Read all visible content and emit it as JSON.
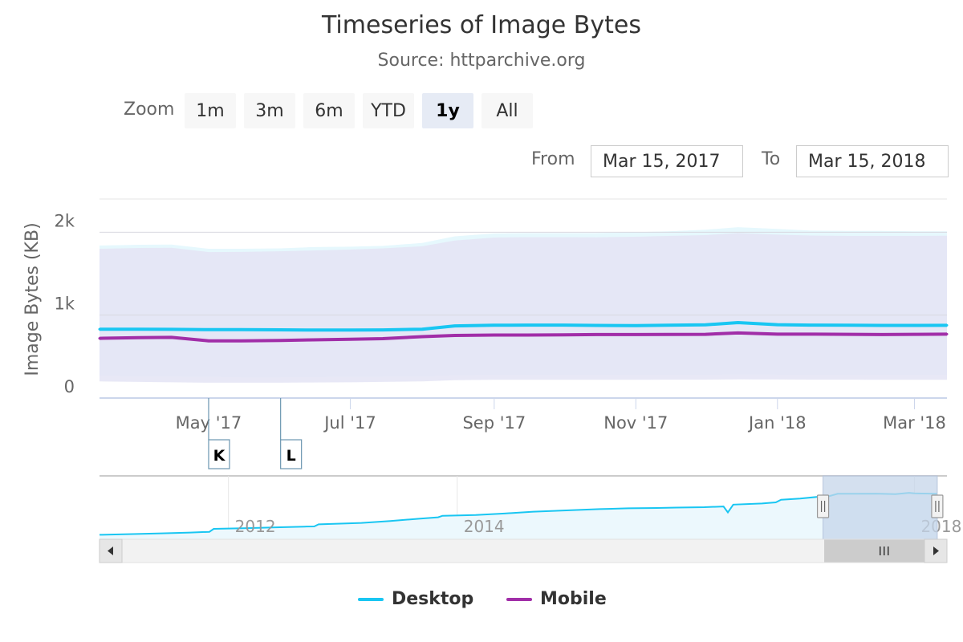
{
  "chart_data": {
    "type": "area",
    "title": "Timeseries of Image Bytes",
    "subtitle": "Source: httparchive.org",
    "ylabel": "Image Bytes (KB)",
    "xlabel": "",
    "ylim": [
      0,
      2400
    ],
    "yticks": [
      {
        "value": 0,
        "label": "0"
      },
      {
        "value": 1000,
        "label": "1k"
      },
      {
        "value": 2000,
        "label": "2k"
      }
    ],
    "xlim": [
      "2017-03-15",
      "2018-03-15"
    ],
    "xticks": [
      {
        "date": "2017-05-01",
        "label": "May '17"
      },
      {
        "date": "2017-07-01",
        "label": "Jul '17"
      },
      {
        "date": "2017-09-01",
        "label": "Sep '17"
      },
      {
        "date": "2017-11-01",
        "label": "Nov '17"
      },
      {
        "date": "2018-01-01",
        "label": "Jan '18"
      },
      {
        "date": "2018-03-01",
        "label": "Mar '18"
      }
    ],
    "grid": true,
    "legend_position": "bottom-center",
    "series": [
      {
        "name": "Desktop",
        "color": "#19c6f2",
        "x": [
          "2017-03-15",
          "2017-04-01",
          "2017-04-15",
          "2017-05-01",
          "2017-05-15",
          "2017-06-01",
          "2017-06-15",
          "2017-07-01",
          "2017-07-15",
          "2017-08-01",
          "2017-08-15",
          "2017-09-01",
          "2017-09-15",
          "2017-10-01",
          "2017-10-15",
          "2017-11-01",
          "2017-11-15",
          "2017-12-01",
          "2017-12-15",
          "2018-01-01",
          "2018-01-15",
          "2018-02-01",
          "2018-02-15",
          "2018-03-01",
          "2018-03-15"
        ],
        "values": [
          830,
          830,
          828,
          825,
          825,
          823,
          820,
          820,
          822,
          830,
          870,
          878,
          880,
          880,
          876,
          874,
          878,
          883,
          910,
          885,
          880,
          878,
          876,
          876,
          877
        ],
        "band": {
          "low": [
            270,
            265,
            260,
            255,
            250,
            250,
            252,
            255,
            258,
            262,
            275,
            280,
            280,
            280,
            280,
            280,
            280,
            280,
            285,
            282,
            280,
            280,
            278,
            278,
            278
          ],
          "high": [
            1840,
            1848,
            1850,
            1800,
            1800,
            1805,
            1820,
            1825,
            1835,
            1870,
            1950,
            1985,
            1990,
            1990,
            1990,
            2000,
            2010,
            2030,
            2060,
            2040,
            2020,
            2015,
            2015,
            2010,
            2010
          ]
        }
      },
      {
        "name": "Mobile",
        "color": "#a12ea8",
        "x": [
          "2017-03-15",
          "2017-04-01",
          "2017-04-15",
          "2017-05-01",
          "2017-05-15",
          "2017-06-01",
          "2017-06-15",
          "2017-07-01",
          "2017-07-15",
          "2017-08-01",
          "2017-08-15",
          "2017-09-01",
          "2017-09-15",
          "2017-10-01",
          "2017-10-15",
          "2017-11-01",
          "2017-11-15",
          "2017-12-01",
          "2017-12-15",
          "2018-01-01",
          "2018-01-15",
          "2018-02-01",
          "2018-02-15",
          "2018-03-01",
          "2018-03-15"
        ],
        "values": [
          720,
          728,
          732,
          690,
          690,
          695,
          702,
          708,
          716,
          740,
          755,
          760,
          760,
          762,
          765,
          765,
          766,
          768,
          785,
          770,
          770,
          768,
          765,
          768,
          770
        ],
        "band": {
          "low": [
            200,
            195,
            190,
            185,
            185,
            185,
            188,
            190,
            195,
            200,
            215,
            220,
            220,
            220,
            220,
            220,
            222,
            222,
            225,
            224,
            222,
            222,
            220,
            220,
            220
          ],
          "high": [
            1800,
            1810,
            1812,
            1760,
            1762,
            1770,
            1780,
            1790,
            1805,
            1830,
            1900,
            1935,
            1940,
            1940,
            1938,
            1945,
            1955,
            1965,
            1990,
            1970,
            1960,
            1955,
            1955,
            1955,
            1958
          ]
        }
      }
    ],
    "flags": [
      {
        "date": "2017-05-01",
        "label": "K"
      },
      {
        "date": "2017-06-01",
        "label": "L"
      }
    ],
    "navigator": {
      "xlim": [
        "2010-11-15",
        "2018-04-15"
      ],
      "xticks": [
        {
          "date": "2012-01-01",
          "label": "2012"
        },
        {
          "date": "2014-01-01",
          "label": "2014"
        },
        {
          "date": "2018-01-01",
          "label": "2018"
        }
      ],
      "ylim": [
        300,
        2000
      ],
      "selected_range": [
        "2017-03-15",
        "2018-03-15"
      ],
      "series": {
        "x": [
          "2010-11-15",
          "2011-03-01",
          "2011-06-01",
          "2011-09-01",
          "2011-11-01",
          "2011-11-15",
          "2012-03-01",
          "2012-06-01",
          "2012-09-01",
          "2012-10-01",
          "2012-10-15",
          "2013-03-01",
          "2013-06-01",
          "2013-09-01",
          "2013-11-01",
          "2013-11-15",
          "2014-03-01",
          "2014-06-01",
          "2014-09-01",
          "2015-01-01",
          "2015-04-01",
          "2015-07-01",
          "2015-10-01",
          "2015-12-01",
          "2016-03-01",
          "2016-05-01",
          "2016-05-15",
          "2016-06-01",
          "2016-09-01",
          "2016-10-15",
          "2016-11-01",
          "2017-01-01",
          "2017-03-01",
          "2017-03-15",
          "2017-05-01",
          "2017-07-01",
          "2017-09-01",
          "2017-11-01",
          "2017-12-15",
          "2018-01-01",
          "2018-03-15"
        ],
        "values": [
          420,
          440,
          460,
          480,
          500,
          580,
          600,
          620,
          640,
          645,
          700,
          740,
          790,
          850,
          890,
          930,
          950,
          990,
          1040,
          1080,
          1110,
          1130,
          1140,
          1150,
          1160,
          1180,
          1020,
          1230,
          1260,
          1290,
          1360,
          1390,
          1440,
          1410,
          1520,
          1520,
          1525,
          1510,
          1545,
          1530,
          1520
        ]
      }
    }
  },
  "zoom": {
    "label": "Zoom",
    "buttons": [
      {
        "label": "1m",
        "active": false
      },
      {
        "label": "3m",
        "active": false
      },
      {
        "label": "6m",
        "active": false
      },
      {
        "label": "YTD",
        "active": false
      },
      {
        "label": "1y",
        "active": true
      },
      {
        "label": "All",
        "active": false
      }
    ]
  },
  "range": {
    "from_label": "From",
    "from_value": "Mar 15, 2017",
    "to_label": "To",
    "to_value": "Mar 15, 2018"
  },
  "colors": {
    "desktop": "#19c6f2",
    "mobile": "#a12ea8",
    "navigator_line": "#19c6f2",
    "navigator_mask": "#c5d5ea"
  },
  "icons": {
    "scroll_left": "chevron-left-icon",
    "scroll_right": "chevron-right-icon",
    "scrollbar_grip": "grip-icon",
    "handle_grip": "grip-icon"
  }
}
